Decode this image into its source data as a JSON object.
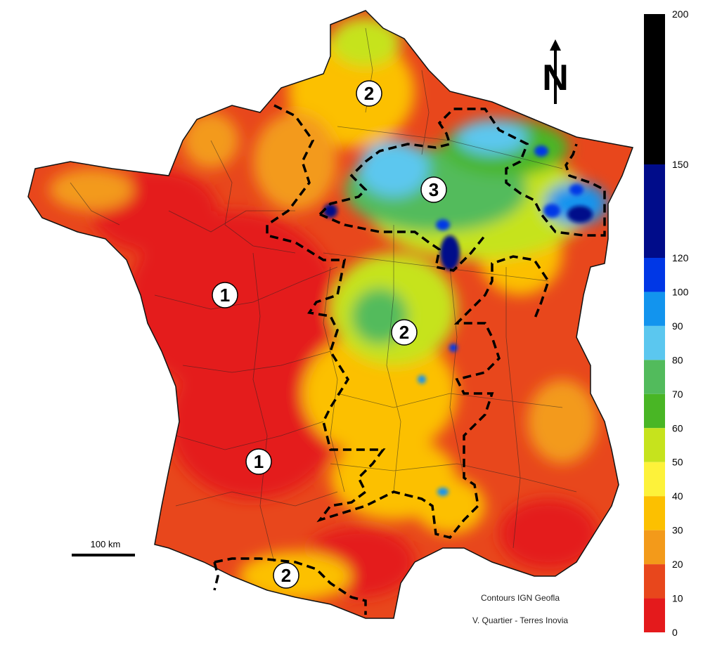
{
  "legend": {
    "scale_type": "stepped",
    "bands": [
      {
        "from": 0,
        "to": 10,
        "color": "#e41a1c"
      },
      {
        "from": 10,
        "to": 20,
        "color": "#e8471c"
      },
      {
        "from": 20,
        "to": 30,
        "color": "#f39a1a"
      },
      {
        "from": 30,
        "to": 40,
        "color": "#fcc000"
      },
      {
        "from": 40,
        "to": 50,
        "color": "#fdf23a"
      },
      {
        "from": 50,
        "to": 60,
        "color": "#c6e31d"
      },
      {
        "from": 60,
        "to": 70,
        "color": "#49b625"
      },
      {
        "from": 70,
        "to": 80,
        "color": "#52bb5c"
      },
      {
        "from": 80,
        "to": 90,
        "color": "#5bc7ef"
      },
      {
        "from": 90,
        "to": 100,
        "color": "#1294ee"
      },
      {
        "from": 100,
        "to": 120,
        "color": "#0037e6"
      },
      {
        "from": 120,
        "to": 150,
        "color": "#000c8a"
      },
      {
        "from": 150,
        "to": 200,
        "color": "#000000"
      }
    ],
    "ticks": [
      "200",
      "150",
      "120",
      "100",
      "90",
      "80",
      "70",
      "60",
      "50",
      "40",
      "30",
      "20",
      "10",
      "0"
    ]
  },
  "zones": [
    {
      "label": "1"
    },
    {
      "label": "1"
    },
    {
      "label": "2"
    },
    {
      "label": "2"
    },
    {
      "label": "2"
    },
    {
      "label": "3"
    }
  ],
  "scale_bar": {
    "label": "100 km"
  },
  "north_arrow": {
    "letter": "N",
    "icon": "north-arrow-icon"
  },
  "credits": {
    "contours": "Contours IGN Geofla",
    "author": "V. Quartier - Terres Inovia"
  }
}
